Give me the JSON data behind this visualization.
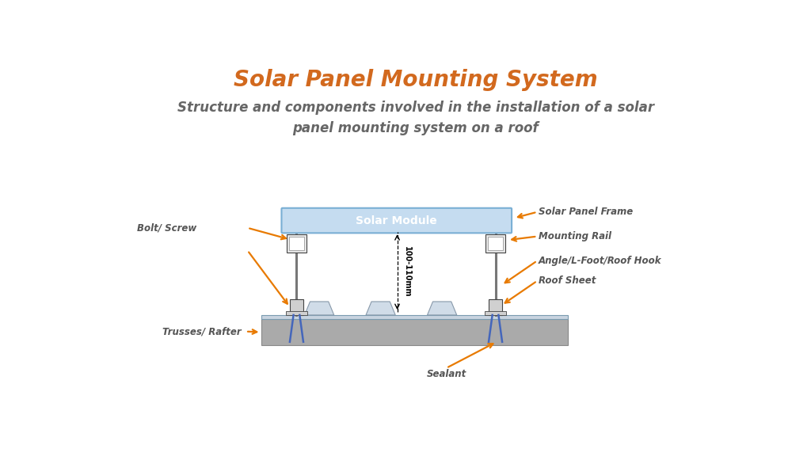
{
  "title": "Solar Panel Mounting System",
  "title_color": "#D2691E",
  "title_fontsize": 20,
  "subtitle": "Structure and components involved in the installation of a solar\npanel mounting system on a roof",
  "subtitle_color": "#666666",
  "subtitle_fontsize": 12,
  "bg_color": "#FFFFFF",
  "arrow_color": "#E87A00",
  "label_color": "#555555",
  "label_fontsize": 8.5,
  "solar_module_color": "#C5DCF0",
  "solar_module_border": "#7AAFD4",
  "solar_module_text": "Solar Module",
  "solar_module_text_color": "#FFFFFF",
  "rafter_color": "#AAAAAA",
  "rafter_edge": "#888888",
  "rail_block_color": "#E8E8E8",
  "rail_block_edge": "#444444",
  "foot_color": "#D0D0D0",
  "foot_edge": "#444444",
  "screw_color": "#4466BB",
  "roof_sheet_color": "#C8D4E0",
  "roof_sheet_edge": "#7A9BB0",
  "corrugation_color": "#D0DCE8",
  "corrugation_edge": "#8899AA"
}
